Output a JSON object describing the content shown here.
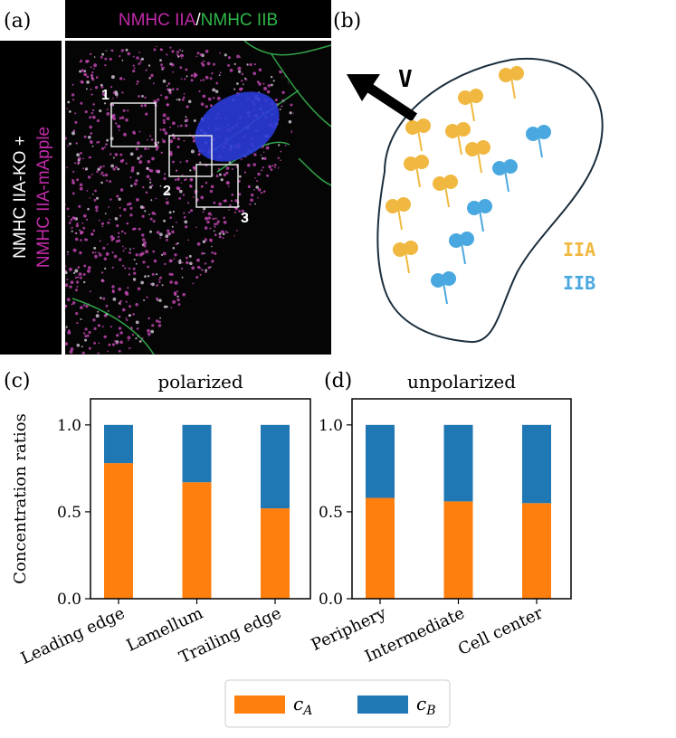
{
  "figure": {
    "panel_labels": [
      "(a)",
      "(b)",
      "(c)",
      "(d)"
    ],
    "image": {
      "header_a": "NMHC IIA",
      "header_sep": "/",
      "header_b": "NMHC IIB",
      "side_1": "NMHC IIA-KO +",
      "side_2": "NMHC IIA-mApple",
      "regions": [
        "1",
        "2",
        "3"
      ]
    },
    "diagram": {
      "velocity": "V",
      "labels": [
        "IIA",
        "IIB"
      ]
    }
  },
  "chart_data": [
    {
      "type": "bar",
      "stacked": true,
      "title": "polarized",
      "y_label": "Concentration ratios",
      "categories": [
        "Leading edge",
        "Lamellum",
        "Trailing edge"
      ],
      "series": [
        {
          "name": "c_A",
          "color": "#ff7f0e",
          "values": [
            0.78,
            0.67,
            0.52
          ]
        },
        {
          "name": "c_B",
          "color": "#1f77b4",
          "values": [
            0.22,
            0.33,
            0.48
          ]
        }
      ],
      "ylim": [
        0,
        1.15
      ],
      "yticks": [
        {
          "value": 0,
          "label": "0.0"
        },
        {
          "value": 0.5,
          "label": "0.5"
        },
        {
          "value": 1,
          "label": "1.0"
        }
      ]
    },
    {
      "type": "bar",
      "stacked": true,
      "title": "unpolarized",
      "categories": [
        "Periphery",
        "Intermediate",
        "Cell center"
      ],
      "series": [
        {
          "color": "#ff7f0e",
          "values": [
            0.58,
            0.56,
            0.55
          ]
        },
        {
          "color": "#1f77b4",
          "values": [
            0.42,
            0.44,
            0.45
          ]
        }
      ],
      "ylim": [
        0,
        1.15
      ],
      "yticks": [
        {
          "value": 0,
          "label": "0.0"
        },
        {
          "value": 0.5,
          "label": "0.5"
        },
        {
          "value": 1,
          "label": "1.0"
        }
      ]
    }
  ]
}
